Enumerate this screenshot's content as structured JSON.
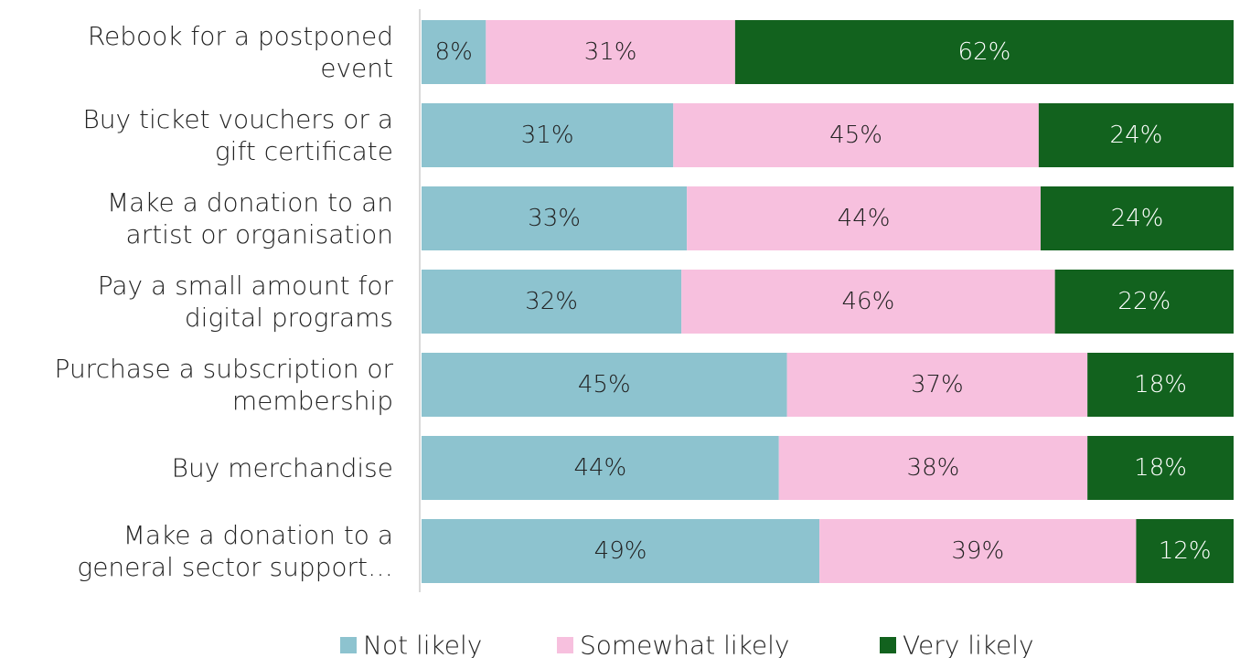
{
  "chart_data": {
    "type": "bar",
    "orientation": "horizontal",
    "stacked": true,
    "title": "",
    "xlabel": "",
    "ylabel": "",
    "xlim": [
      0,
      100
    ],
    "grid": false,
    "legend_position": "bottom",
    "categories": [
      [
        "Rebook for a postponed",
        "event"
      ],
      [
        "Buy ticket vouchers or a",
        "gift certificate"
      ],
      [
        "Make a donation to an",
        "artist or organisation"
      ],
      [
        "Pay a small amount for",
        "digital programs"
      ],
      [
        "Purchase a subscription or",
        "membership"
      ],
      [
        "Buy merchandise"
      ],
      [
        "Make a donation to a",
        "general sector support…"
      ]
    ],
    "series": [
      {
        "name": "Not likely",
        "color": "#8dc3cf",
        "label_color": "#222222",
        "values": [
          8,
          31,
          33,
          32,
          45,
          44,
          49
        ],
        "labels": [
          "8%",
          "31%",
          "33%",
          "32%",
          "45%",
          "44%",
          "49%"
        ]
      },
      {
        "name": "Somewhat likely",
        "color": "#f7c0de",
        "label_color": "#222222",
        "values": [
          31,
          45,
          44,
          46,
          37,
          38,
          39
        ],
        "labels": [
          "31%",
          "45%",
          "44%",
          "46%",
          "37%",
          "38%",
          "39%"
        ]
      },
      {
        "name": "Very likely",
        "color": "#12621e",
        "label_color": "#ffffff",
        "values": [
          62,
          24,
          24,
          22,
          18,
          18,
          12
        ],
        "labels": [
          "62%",
          "24%",
          "24%",
          "22%",
          "18%",
          "18%",
          "12%"
        ]
      }
    ]
  }
}
